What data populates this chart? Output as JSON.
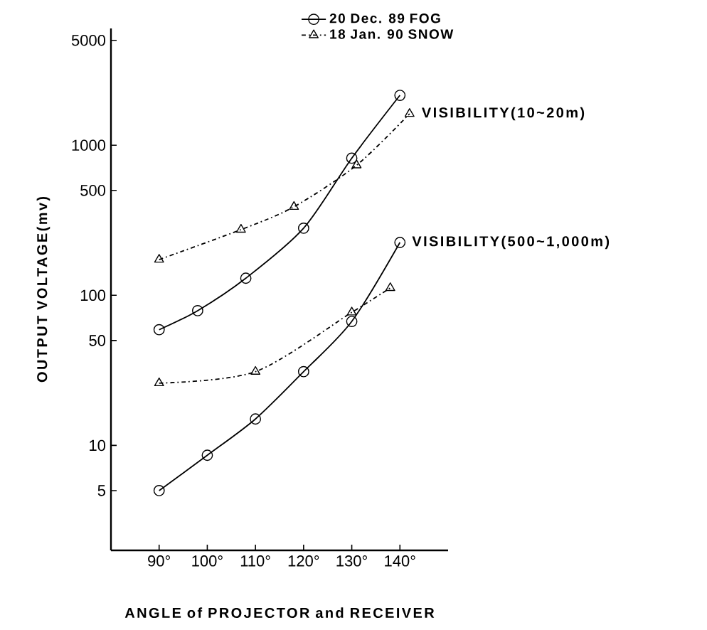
{
  "chart_data": {
    "type": "line",
    "xlabel": "ANGLE of PROJECTOR and RECEIVER",
    "ylabel": "OUTPUT VOLTAGE(mv)",
    "log": "y",
    "xlim": [
      80,
      150
    ],
    "ylim": [
      2,
      6000
    ],
    "xticks": [
      {
        "value": 90,
        "label": "90°"
      },
      {
        "value": 100,
        "label": "100°"
      },
      {
        "value": 110,
        "label": "110°"
      },
      {
        "value": 120,
        "label": "120°"
      },
      {
        "value": 130,
        "label": "130°"
      },
      {
        "value": 140,
        "label": "140°"
      }
    ],
    "yticks": [
      5,
      10,
      50,
      100,
      500,
      1000,
      5000
    ],
    "legend": "top",
    "series": [
      {
        "name": "20 Dec. 89  FOG",
        "color": "#000000",
        "marker": "circle",
        "line_style": "solid",
        "x": [
          90,
          98,
          108,
          120,
          130,
          140
        ],
        "values": [
          59,
          79,
          130,
          280,
          820,
          2150
        ]
      },
      {
        "name": "18 Jan. 90  SNOW",
        "color": "#000000",
        "marker": "triangle",
        "line_style": "dashdot",
        "x": [
          90,
          107,
          118,
          131,
          142
        ],
        "values": [
          173,
          274,
          389,
          736,
          1620
        ]
      },
      {
        "color": "#000000",
        "marker": "circle",
        "line_style": "solid",
        "x": [
          90,
          100,
          110,
          120,
          130,
          140
        ],
        "values": [
          5,
          8.6,
          15,
          31,
          67,
          225
        ]
      },
      {
        "color": "#000000",
        "marker": "triangle",
        "line_style": "dashdot",
        "x": [
          90,
          110,
          130,
          138
        ],
        "values": [
          26,
          31,
          77,
          112
        ]
      }
    ],
    "annotations": [
      {
        "text": "VISIBILITY(10~20m)",
        "x": 142,
        "y": 1620
      },
      {
        "text": "VISIBILITY(500~1,000m)",
        "x": 140,
        "y": 225
      }
    ]
  }
}
